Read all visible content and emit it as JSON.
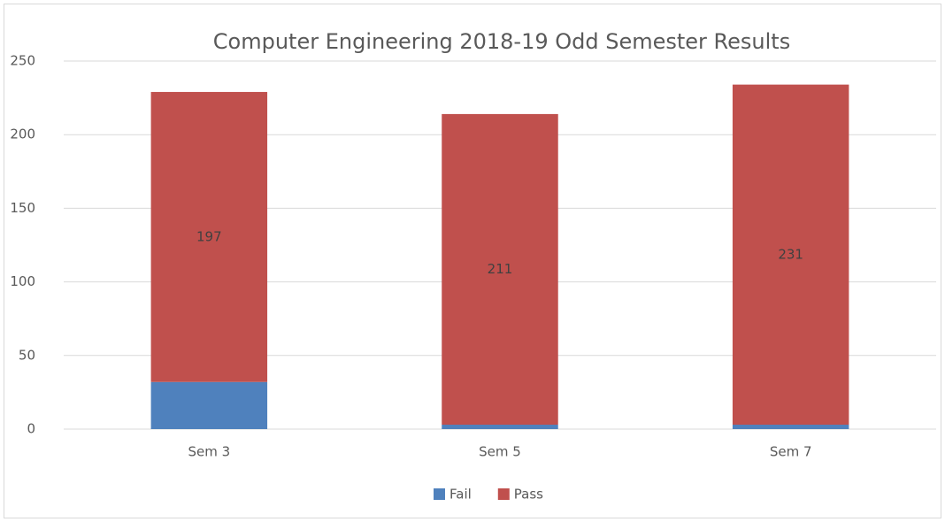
{
  "chart_data": {
    "type": "stacked_bar",
    "title": "Computer Engineering 2018-19 Odd Semester Results",
    "categories": [
      "Sem 3",
      "Sem 5",
      "Sem 7"
    ],
    "series": [
      {
        "name": "Fail",
        "color": "#4f81bd",
        "values": [
          32,
          3,
          3
        ]
      },
      {
        "name": "Pass",
        "color": "#c0504d",
        "values": [
          197,
          211,
          231
        ],
        "data_labels": true
      }
    ],
    "ylim": [
      0,
      250
    ],
    "yticks": [
      0,
      50,
      100,
      150,
      200,
      250
    ],
    "grid": true,
    "legend": "bottom"
  }
}
